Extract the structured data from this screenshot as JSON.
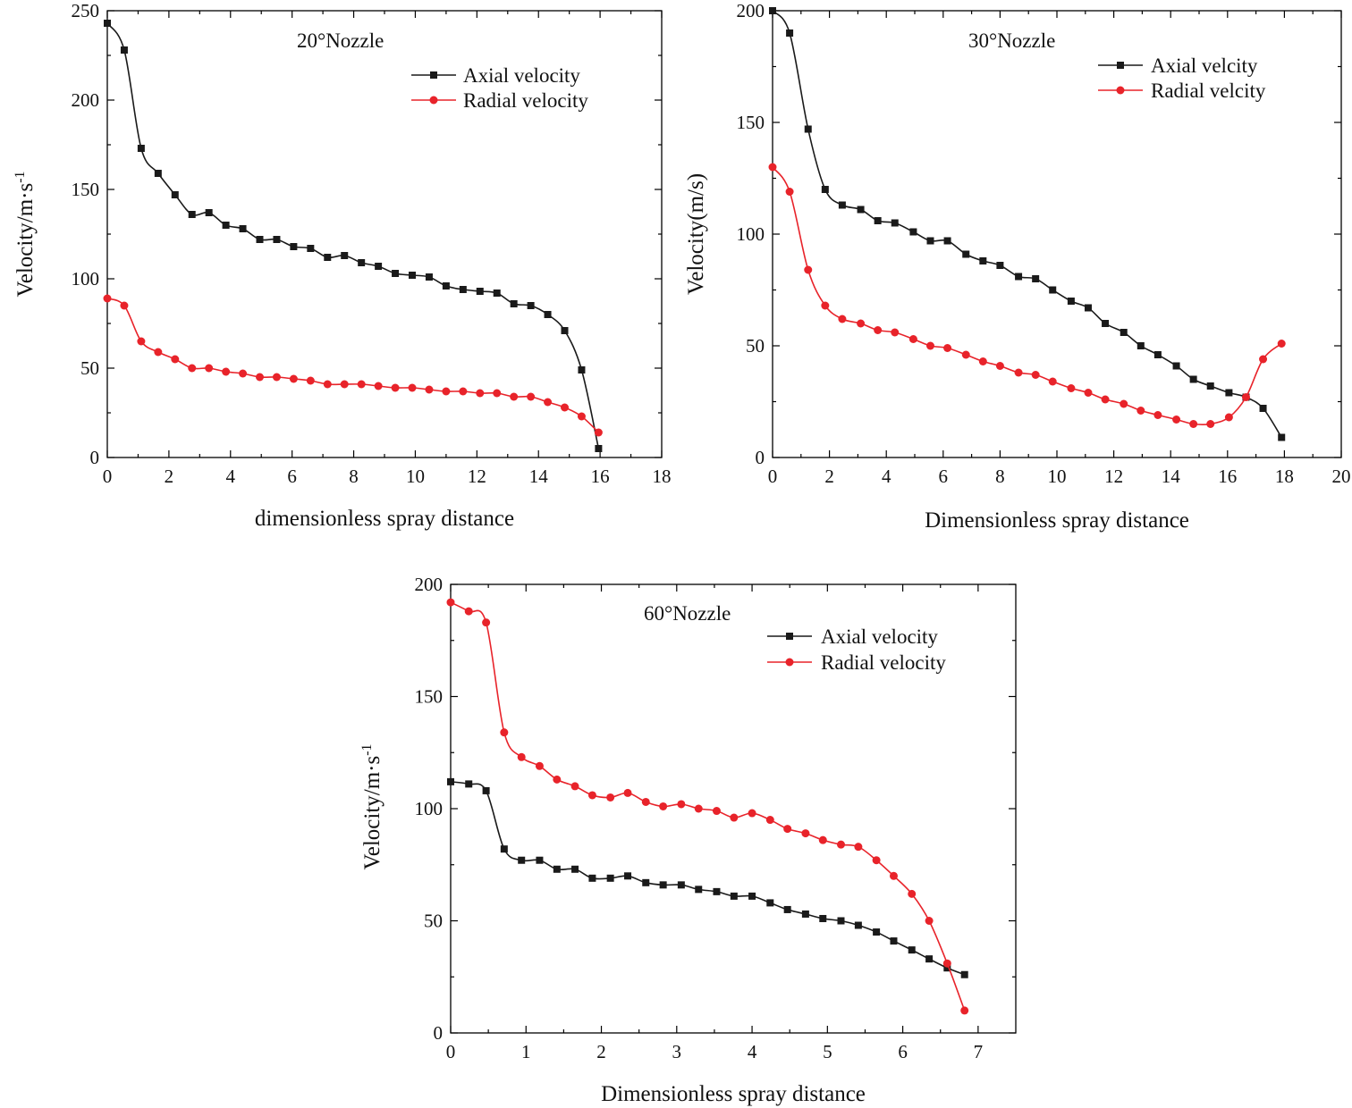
{
  "colors": {
    "axial": "#1a1a1a",
    "radial": "#e8232a"
  },
  "chart_data": [
    {
      "type": "line",
      "title": "20°Nozzle",
      "xlabel": "dimensionless spray distance",
      "ylabel": "Velocity/m·s",
      "ylabel_sup": "-1",
      "xlim": [
        0,
        18
      ],
      "ylim": [
        0,
        250
      ],
      "xticks": [
        0,
        2,
        4,
        6,
        8,
        10,
        12,
        14,
        16,
        18
      ],
      "yticks": [
        0,
        50,
        100,
        150,
        200,
        250
      ],
      "legend_position": "top-right",
      "series": [
        {
          "name": "Axial velocity",
          "marker": "square",
          "color": "axial",
          "x": [
            0,
            0.55,
            1.1,
            1.65,
            2.2,
            2.75,
            3.3,
            3.85,
            4.4,
            4.95,
            5.5,
            6.05,
            6.6,
            7.15,
            7.7,
            8.25,
            8.8,
            9.35,
            9.9,
            10.45,
            11.0,
            11.55,
            12.1,
            12.65,
            13.2,
            13.75,
            14.3,
            14.85,
            15.4,
            15.95
          ],
          "y": [
            243,
            228,
            173,
            159,
            147,
            136,
            137,
            130,
            128,
            122,
            122,
            118,
            117,
            112,
            113,
            109,
            107,
            103,
            102,
            101,
            96,
            94,
            93,
            92,
            86,
            85,
            80,
            71,
            49,
            5
          ]
        },
        {
          "name": "Radial velocity",
          "marker": "circle",
          "color": "radial",
          "x": [
            0,
            0.55,
            1.1,
            1.65,
            2.2,
            2.75,
            3.3,
            3.85,
            4.4,
            4.95,
            5.5,
            6.05,
            6.6,
            7.15,
            7.7,
            8.25,
            8.8,
            9.35,
            9.9,
            10.45,
            11.0,
            11.55,
            12.1,
            12.65,
            13.2,
            13.75,
            14.3,
            14.85,
            15.4,
            15.95
          ],
          "y": [
            89,
            85,
            65,
            59,
            55,
            50,
            50,
            48,
            47,
            45,
            45,
            44,
            43,
            41,
            41,
            41,
            40,
            39,
            39,
            38,
            37,
            37,
            36,
            36,
            34,
            34,
            31,
            28,
            23,
            14
          ]
        }
      ]
    },
    {
      "type": "line",
      "title": "30°Nozzle",
      "xlabel": "Dimensionless spray distance",
      "ylabel": "Velocity(m/s)",
      "ylabel_sup": "",
      "xlim": [
        0,
        20
      ],
      "ylim": [
        0,
        200
      ],
      "xticks": [
        0,
        2,
        4,
        6,
        8,
        10,
        12,
        14,
        16,
        18,
        20
      ],
      "yticks": [
        0,
        50,
        100,
        150,
        200
      ],
      "legend_position": "top-right",
      "series": [
        {
          "name": "Axial velcity",
          "marker": "square",
          "color": "axial",
          "x": [
            0,
            0.6,
            1.25,
            1.85,
            2.45,
            3.1,
            3.7,
            4.3,
            4.95,
            5.55,
            6.15,
            6.8,
            7.4,
            8.0,
            8.65,
            9.25,
            9.85,
            10.5,
            11.1,
            11.7,
            12.35,
            12.95,
            13.55,
            14.2,
            14.8,
            15.4,
            16.05,
            16.65,
            17.25,
            17.9
          ],
          "y": [
            200,
            190,
            147,
            120,
            113,
            111,
            106,
            105,
            101,
            97,
            97,
            91,
            88,
            86,
            81,
            80,
            75,
            70,
            67,
            60,
            56,
            50,
            46,
            41,
            35,
            32,
            29,
            27,
            22,
            9
          ]
        },
        {
          "name": "Radial velcity",
          "marker": "circle",
          "color": "radial",
          "x": [
            0,
            0.6,
            1.25,
            1.85,
            2.45,
            3.1,
            3.7,
            4.3,
            4.95,
            5.55,
            6.15,
            6.8,
            7.4,
            8.0,
            8.65,
            9.25,
            9.85,
            10.5,
            11.1,
            11.7,
            12.35,
            12.95,
            13.55,
            14.2,
            14.8,
            15.4,
            16.05,
            16.65,
            17.25,
            17.9
          ],
          "y": [
            130,
            119,
            84,
            68,
            62,
            60,
            57,
            56,
            53,
            50,
            49,
            46,
            43,
            41,
            38,
            37,
            34,
            31,
            29,
            26,
            24,
            21,
            19,
            17,
            15,
            15,
            18,
            27,
            44,
            51
          ]
        }
      ]
    },
    {
      "type": "line",
      "title": "60°Nozzle",
      "xlabel": "Dimensionless spray distance",
      "ylabel": "Velocity/m·s",
      "ylabel_sup": "-1",
      "xlim": [
        0,
        7.5
      ],
      "ylim": [
        0,
        200
      ],
      "xticks": [
        0,
        1,
        2,
        3,
        4,
        5,
        6,
        7
      ],
      "yticks": [
        0,
        50,
        100,
        150,
        200
      ],
      "legend_position": "top-right",
      "series": [
        {
          "name": "Axial velocity",
          "marker": "square",
          "color": "axial",
          "x": [
            0,
            0.24,
            0.47,
            0.71,
            0.94,
            1.18,
            1.41,
            1.65,
            1.88,
            2.12,
            2.35,
            2.59,
            2.82,
            3.06,
            3.29,
            3.53,
            3.76,
            4.0,
            4.24,
            4.47,
            4.71,
            4.94,
            5.18,
            5.41,
            5.65,
            5.88,
            6.12,
            6.35,
            6.59,
            6.82
          ],
          "y": [
            112,
            111,
            108,
            82,
            77,
            77,
            73,
            73,
            69,
            69,
            70,
            67,
            66,
            66,
            64,
            63,
            61,
            61,
            58,
            55,
            53,
            51,
            50,
            48,
            45,
            41,
            37,
            33,
            29,
            26
          ]
        },
        {
          "name": "Radial velocity",
          "marker": "circle",
          "color": "radial",
          "x": [
            0,
            0.24,
            0.47,
            0.71,
            0.94,
            1.18,
            1.41,
            1.65,
            1.88,
            2.12,
            2.35,
            2.59,
            2.82,
            3.06,
            3.29,
            3.53,
            3.76,
            4.0,
            4.24,
            4.47,
            4.71,
            4.94,
            5.18,
            5.41,
            5.65,
            5.88,
            6.12,
            6.35,
            6.59,
            6.82
          ],
          "y": [
            192,
            188,
            183,
            134,
            123,
            119,
            113,
            110,
            106,
            105,
            107,
            103,
            101,
            102,
            100,
            99,
            96,
            98,
            95,
            91,
            89,
            86,
            84,
            83,
            77,
            70,
            62,
            50,
            31,
            10
          ]
        }
      ]
    }
  ]
}
